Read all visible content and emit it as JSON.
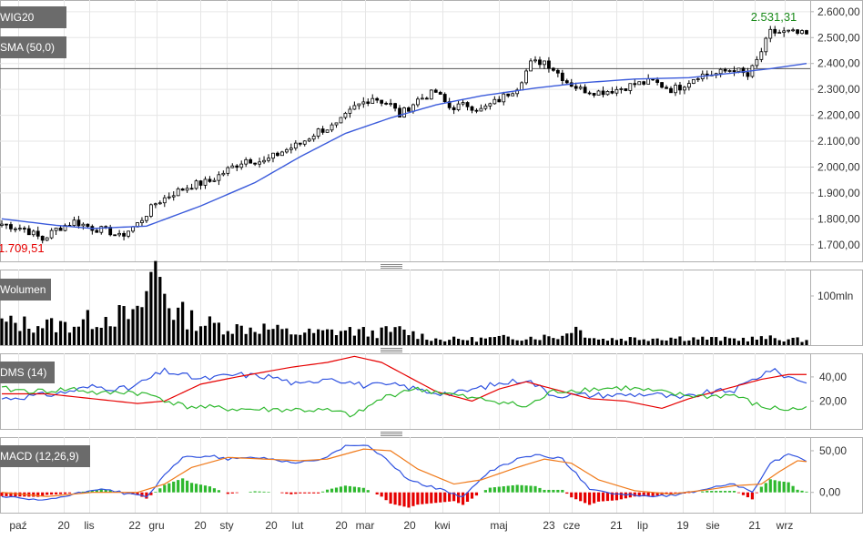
{
  "colors": {
    "up": "#000000",
    "down": "#000000",
    "sma": "#3b5bdb",
    "grid": "#e6e6e6",
    "axis": "#b0b0b0",
    "red": "#e60000",
    "green": "#2eb82e",
    "blue": "#2f52e0",
    "orange": "#f07a1a",
    "last_price": "#1a8a1a",
    "min_price": "#e60000",
    "badge_bg": "#6b6b6b"
  },
  "panels": {
    "price": {
      "label": "WIG20",
      "sma_label": "SMA (50,0)"
    },
    "volume": {
      "label": "Wolumen"
    },
    "dms": {
      "label": "DMS (14)"
    },
    "macd": {
      "label": "MACD (12,26,9)"
    }
  },
  "chart_data": [
    {
      "type": "candlestick",
      "title": "WIG20",
      "series_name": "WIG20",
      "overlay": {
        "name": "SMA (50,0)",
        "type": "line"
      },
      "y_ticks": [
        "1.700,00",
        "1.800,00",
        "1.900,00",
        "2.000,00",
        "2.100,00",
        "2.200,00",
        "2.300,00",
        "2.400,00",
        "2.500,00",
        "2.600,00"
      ],
      "ylim": [
        1650,
        2610
      ],
      "annotations": {
        "last_value": "2.531,31",
        "min_value": "1.709,51"
      },
      "reference_line": 2380,
      "x_ticks": [
        "paź",
        "20",
        "lis",
        "22",
        "gru",
        "20",
        "sty",
        "20",
        "lut",
        "20",
        "mar",
        "20",
        "kwi",
        "maj",
        "23",
        "cze",
        "21",
        "lip",
        "19",
        "sie",
        "21",
        "wrz"
      ],
      "close_keypoints": [
        [
          0,
          1780
        ],
        [
          5,
          1762
        ],
        [
          9,
          1720
        ],
        [
          12,
          1760
        ],
        [
          16,
          1790
        ],
        [
          20,
          1765
        ],
        [
          24,
          1750
        ],
        [
          26,
          1730
        ],
        [
          30,
          1780
        ],
        [
          34,
          1860
        ],
        [
          38,
          1900
        ],
        [
          42,
          1930
        ],
        [
          46,
          1945
        ],
        [
          50,
          1990
        ],
        [
          54,
          2030
        ],
        [
          58,
          2020
        ],
        [
          62,
          2060
        ],
        [
          66,
          2090
        ],
        [
          70,
          2140
        ],
        [
          74,
          2160
        ],
        [
          78,
          2230
        ],
        [
          82,
          2270
        ],
        [
          86,
          2240
        ],
        [
          88,
          2200
        ],
        [
          92,
          2260
        ],
        [
          96,
          2290
        ],
        [
          99,
          2230
        ],
        [
          103,
          2240
        ],
        [
          106,
          2220
        ],
        [
          110,
          2260
        ],
        [
          114,
          2310
        ],
        [
          117,
          2400
        ],
        [
          120,
          2410
        ],
        [
          122,
          2380
        ],
        [
          125,
          2330
        ],
        [
          128,
          2300
        ],
        [
          132,
          2290
        ],
        [
          136,
          2300
        ],
        [
          140,
          2320
        ],
        [
          144,
          2330
        ],
        [
          148,
          2300
        ],
        [
          150,
          2310
        ],
        [
          154,
          2355
        ],
        [
          158,
          2360
        ],
        [
          162,
          2380
        ],
        [
          165,
          2350
        ],
        [
          167,
          2410
        ],
        [
          170,
          2520
        ],
        [
          174,
          2520
        ],
        [
          178,
          2510
        ]
      ],
      "sma_keypoints": [
        [
          0,
          1800
        ],
        [
          12,
          1775
        ],
        [
          20,
          1763
        ],
        [
          32,
          1772
        ],
        [
          44,
          1850
        ],
        [
          56,
          1940
        ],
        [
          66,
          2040
        ],
        [
          76,
          2130
        ],
        [
          86,
          2190
        ],
        [
          96,
          2240
        ],
        [
          106,
          2275
        ],
        [
          118,
          2305
        ],
        [
          128,
          2325
        ],
        [
          140,
          2340
        ],
        [
          152,
          2345
        ],
        [
          160,
          2360
        ],
        [
          170,
          2380
        ],
        [
          178,
          2400
        ]
      ]
    },
    {
      "type": "bar",
      "title": "Wolumen",
      "y_ticks": [
        "100mln"
      ],
      "ylim": [
        0,
        150
      ],
      "volume_keypoints": [
        [
          0,
          45
        ],
        [
          14,
          40
        ],
        [
          24,
          60
        ],
        [
          30,
          58
        ],
        [
          34,
          160
        ],
        [
          38,
          70
        ],
        [
          44,
          45
        ],
        [
          52,
          35
        ],
        [
          58,
          35
        ],
        [
          64,
          25
        ],
        [
          70,
          25
        ],
        [
          76,
          30
        ],
        [
          82,
          25
        ],
        [
          88,
          30
        ],
        [
          96,
          12
        ],
        [
          104,
          12
        ],
        [
          112,
          15
        ],
        [
          124,
          18
        ],
        [
          126,
          38
        ],
        [
          132,
          12
        ],
        [
          140,
          14
        ],
        [
          150,
          15
        ],
        [
          160,
          12
        ],
        [
          170,
          14
        ],
        [
          178,
          10
        ]
      ]
    },
    {
      "type": "line",
      "title": "DMS (14)",
      "y_ticks": [
        "20,00",
        "40,00"
      ],
      "ylim": [
        0,
        55
      ],
      "series": [
        {
          "name": "DMS (14)",
          "keypoints": [
            [
              0,
              22
            ],
            [
              12,
              26
            ],
            [
              20,
              32
            ],
            [
              28,
              30
            ],
            [
              36,
              45
            ],
            [
              44,
              38
            ],
            [
              52,
              42
            ],
            [
              60,
              40
            ],
            [
              66,
              33
            ],
            [
              72,
              40
            ],
            [
              80,
              33
            ],
            [
              88,
              33
            ],
            [
              94,
              28
            ],
            [
              100,
              26
            ],
            [
              108,
              33
            ],
            [
              116,
              38
            ],
            [
              122,
              25
            ],
            [
              130,
              25
            ],
            [
              136,
              25
            ],
            [
              144,
              26
            ],
            [
              150,
              22
            ],
            [
              156,
              27
            ],
            [
              162,
              29
            ],
            [
              170,
              46
            ],
            [
              174,
              40
            ],
            [
              178,
              36
            ]
          ]
        },
        {
          "name": "red",
          "keypoints": [
            [
              0,
              26
            ],
            [
              10,
              26
            ],
            [
              20,
              22
            ],
            [
              30,
              18
            ],
            [
              36,
              20
            ],
            [
              44,
              34
            ],
            [
              52,
              40
            ],
            [
              64,
              48
            ],
            [
              72,
              52
            ],
            [
              78,
              57
            ],
            [
              84,
              52
            ],
            [
              90,
              40
            ],
            [
              96,
              28
            ],
            [
              104,
              20
            ],
            [
              110,
              30
            ],
            [
              116,
              36
            ],
            [
              122,
              30
            ],
            [
              130,
              22
            ],
            [
              138,
              20
            ],
            [
              146,
              14
            ],
            [
              152,
              22
            ],
            [
              162,
              32
            ],
            [
              168,
              38
            ],
            [
              174,
              42
            ],
            [
              178,
              42
            ]
          ]
        },
        {
          "name": "green",
          "keypoints": [
            [
              0,
              30
            ],
            [
              8,
              28
            ],
            [
              16,
              30
            ],
            [
              22,
              26
            ],
            [
              28,
              28
            ],
            [
              34,
              24
            ],
            [
              40,
              16
            ],
            [
              48,
              14
            ],
            [
              56,
              13
            ],
            [
              64,
              13
            ],
            [
              72,
              12
            ],
            [
              78,
              8
            ],
            [
              84,
              22
            ],
            [
              90,
              30
            ],
            [
              96,
              28
            ],
            [
              104,
              22
            ],
            [
              110,
              20
            ],
            [
              116,
              15
            ],
            [
              122,
              28
            ],
            [
              130,
              30
            ],
            [
              138,
              31
            ],
            [
              144,
              28
            ],
            [
              150,
              25
            ],
            [
              156,
              24
            ],
            [
              162,
              25
            ],
            [
              168,
              15
            ],
            [
              174,
              13
            ],
            [
              178,
              14
            ]
          ]
        }
      ]
    },
    {
      "type": "line",
      "title": "MACD (12,26,9)",
      "y_ticks": [
        "0,00",
        "50,00"
      ],
      "ylim": [
        -20,
        62
      ],
      "series": [
        {
          "name": "MACD (12,26,9)",
          "keypoints": [
            [
              0,
              -5
            ],
            [
              8,
              -10
            ],
            [
              14,
              -5
            ],
            [
              22,
              5
            ],
            [
              28,
              -2
            ],
            [
              32,
              -5
            ],
            [
              36,
              20
            ],
            [
              40,
              42
            ],
            [
              46,
              44
            ],
            [
              50,
              40
            ],
            [
              56,
              42
            ],
            [
              60,
              40
            ],
            [
              64,
              36
            ],
            [
              70,
              38
            ],
            [
              76,
              55
            ],
            [
              80,
              58
            ],
            [
              84,
              45
            ],
            [
              90,
              15
            ],
            [
              96,
              5
            ],
            [
              102,
              -5
            ],
            [
              108,
              25
            ],
            [
              114,
              40
            ],
            [
              118,
              45
            ],
            [
              124,
              40
            ],
            [
              130,
              5
            ],
            [
              136,
              -2
            ],
            [
              144,
              -5
            ],
            [
              150,
              -3
            ],
            [
              156,
              5
            ],
            [
              162,
              10
            ],
            [
              166,
              0
            ],
            [
              170,
              35
            ],
            [
              174,
              45
            ],
            [
              178,
              38
            ]
          ]
        },
        {
          "name": "orange",
          "keypoints": [
            [
              0,
              0
            ],
            [
              10,
              -5
            ],
            [
              20,
              0
            ],
            [
              30,
              0
            ],
            [
              36,
              10
            ],
            [
              42,
              30
            ],
            [
              50,
              42
            ],
            [
              58,
              40
            ],
            [
              66,
              38
            ],
            [
              72,
              40
            ],
            [
              80,
              52
            ],
            [
              86,
              50
            ],
            [
              92,
              28
            ],
            [
              100,
              10
            ],
            [
              106,
              15
            ],
            [
              114,
              30
            ],
            [
              120,
              40
            ],
            [
              126,
              35
            ],
            [
              132,
              15
            ],
            [
              140,
              2
            ],
            [
              148,
              -2
            ],
            [
              156,
              3
            ],
            [
              162,
              8
            ],
            [
              168,
              10
            ],
            [
              172,
              25
            ],
            [
              176,
              38
            ],
            [
              178,
              37
            ]
          ]
        }
      ]
    }
  ]
}
